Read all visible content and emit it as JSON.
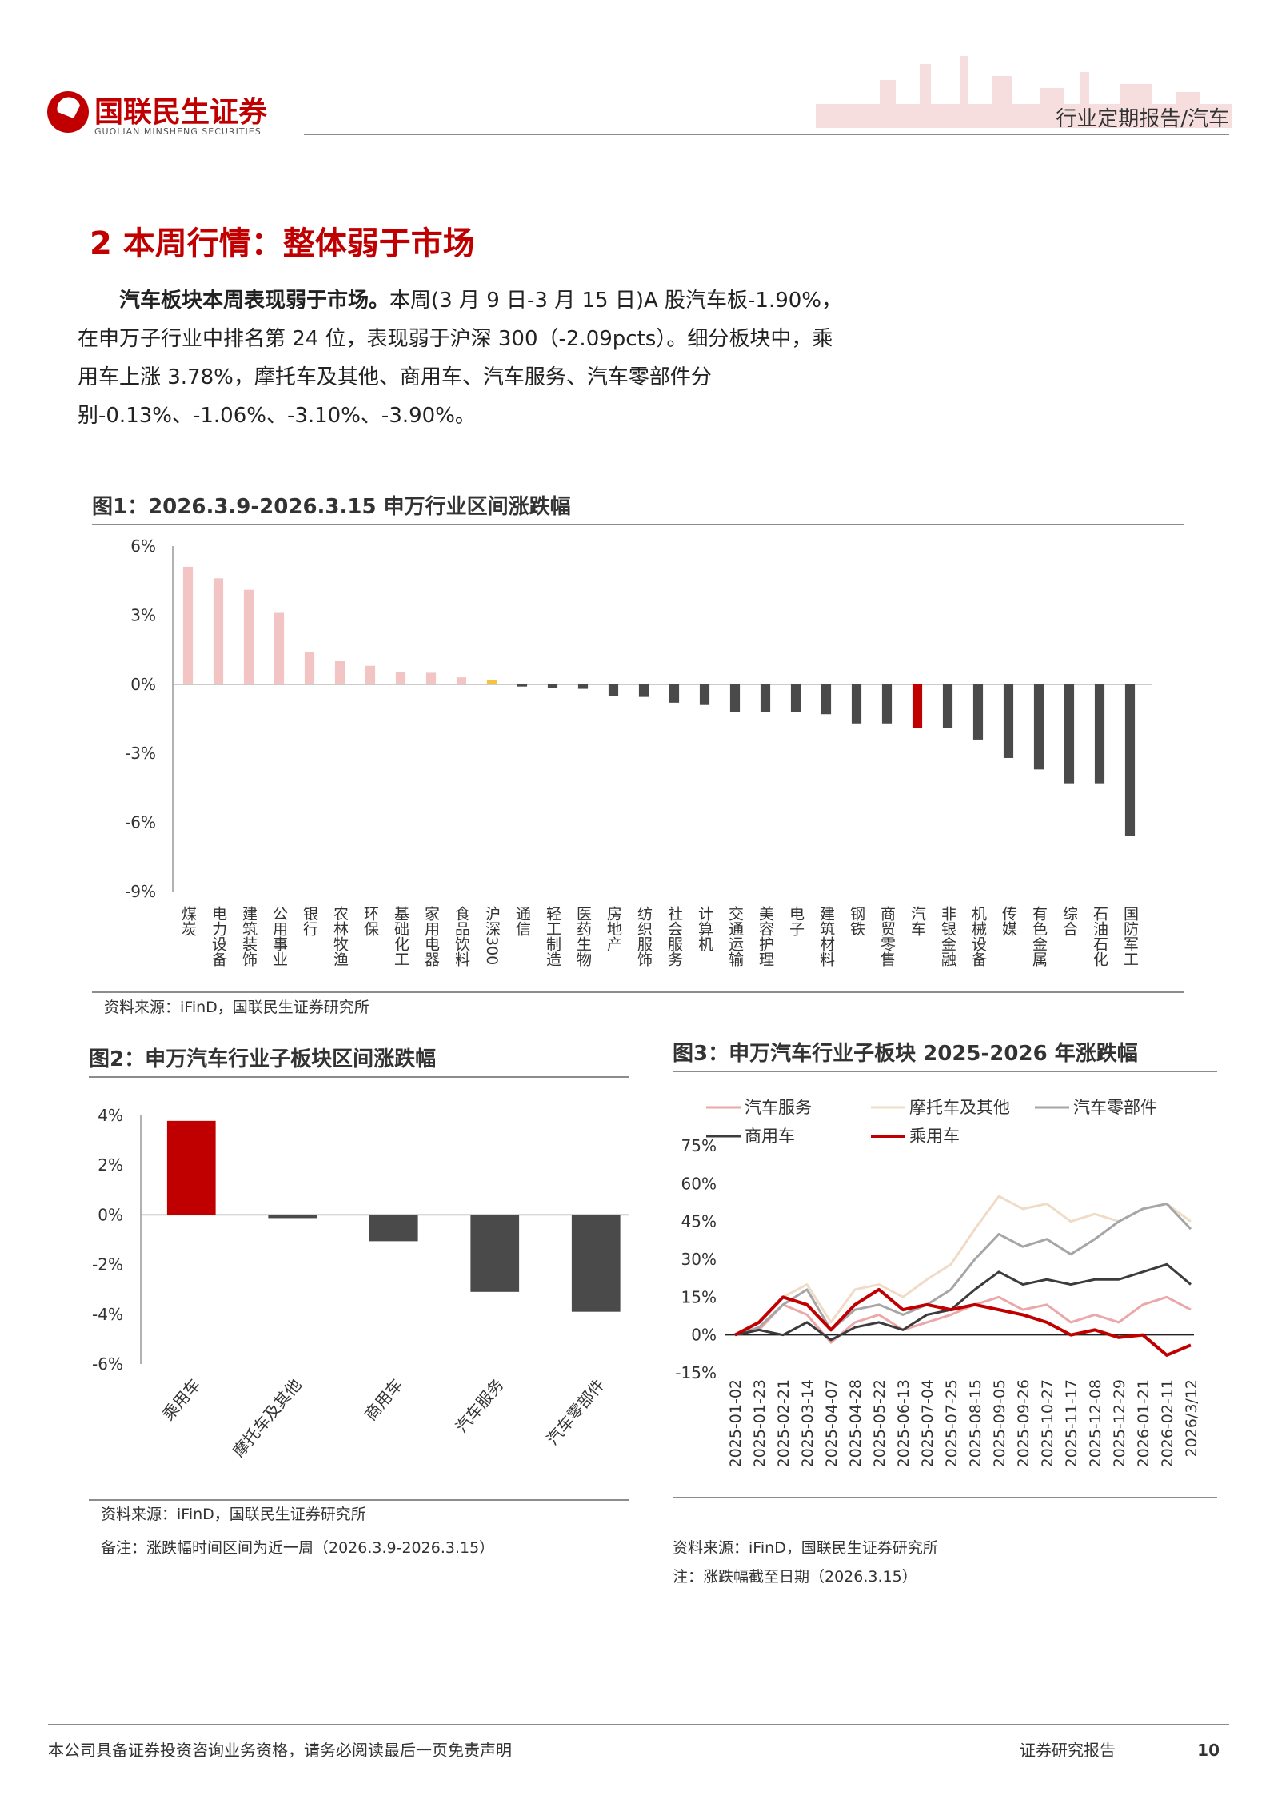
{
  "header": {
    "logo_cn": "国联民生证券",
    "logo_en": "GUOLIAN MINSHENG SECURITIES",
    "report_type": "行业定期报告/汽车"
  },
  "section": {
    "title": "2 本周行情：整体弱于市场"
  },
  "paragraph": {
    "bold": "汽车板块本周表现弱于市场。",
    "text": "本周(3 月 9 日-3 月 15 日)A 股汽车板-1.90%，在申万子行业中排名第 24 位，表现弱于沪深 300（-2.09pcts）。细分板块中，乘用车上涨 3.78%，摩托车及其他、商用车、汽车服务、汽车零部件分别-0.13%、-1.06%、-3.10%、-3.90%。"
  },
  "chart_data": [
    {
      "type": "bar",
      "title": "图1：2026.3.9-2026.3.15 申万行业区间涨跌幅",
      "categories": [
        "煤炭",
        "电力设备",
        "建筑装饰",
        "公用事业",
        "银行",
        "农林牧渔",
        "环保",
        "基础化工",
        "家用电器",
        "食品饮料",
        "沪深300",
        "通信",
        "轻工制造",
        "医药生物",
        "房地产",
        "纺织服饰",
        "社会服务",
        "计算机",
        "交通运输",
        "美容护理",
        "电子",
        "建筑材料",
        "钢铁",
        "商贸零售",
        "汽车",
        "非银金融",
        "机械设备",
        "传媒",
        "有色金属",
        "综合",
        "石油石化",
        "国防军工"
      ],
      "values": [
        5.1,
        4.6,
        4.1,
        3.1,
        1.4,
        1.0,
        0.8,
        0.55,
        0.5,
        0.3,
        0.2,
        -0.1,
        -0.15,
        -0.2,
        -0.5,
        -0.55,
        -0.8,
        -0.9,
        -1.2,
        -1.2,
        -1.2,
        -1.3,
        -1.7,
        -1.7,
        -1.9,
        -1.9,
        -2.4,
        -3.2,
        -3.7,
        -4.3,
        -4.3,
        -6.6
      ],
      "colors": [
        "#f2c4c4",
        "#f2c4c4",
        "#f2c4c4",
        "#f2c4c4",
        "#f2c4c4",
        "#f2c4c4",
        "#f2c4c4",
        "#f2c4c4",
        "#f2c4c4",
        "#f2c4c4",
        "#f5c242",
        "#4a4a4a",
        "#4a4a4a",
        "#4a4a4a",
        "#4a4a4a",
        "#4a4a4a",
        "#4a4a4a",
        "#4a4a4a",
        "#4a4a4a",
        "#4a4a4a",
        "#4a4a4a",
        "#4a4a4a",
        "#4a4a4a",
        "#4a4a4a",
        "#c00000",
        "#4a4a4a",
        "#4a4a4a",
        "#4a4a4a",
        "#4a4a4a",
        "#4a4a4a",
        "#4a4a4a",
        "#4a4a4a"
      ],
      "ylim": [
        -9,
        6
      ],
      "yticks": [
        {
          "value": 6,
          "label": "6%"
        },
        {
          "value": 3,
          "label": "3%"
        },
        {
          "value": 0,
          "label": "0%"
        },
        {
          "value": -3,
          "label": "-3%"
        },
        {
          "value": -6,
          "label": "-6%"
        },
        {
          "value": -9,
          "label": "-9%"
        }
      ],
      "source": "资料来源：iFinD，国联民生证券研究所"
    },
    {
      "type": "bar",
      "title": "图2：申万汽车行业子板块区间涨跌幅",
      "categories": [
        "乘用车",
        "摩托车及其他",
        "商用车",
        "汽车服务",
        "汽车零部件"
      ],
      "values": [
        3.78,
        -0.13,
        -1.06,
        -3.1,
        -3.9
      ],
      "colors": [
        "#c00000",
        "#4a4a4a",
        "#4a4a4a",
        "#4a4a4a",
        "#4a4a4a"
      ],
      "ylim": [
        -6,
        4
      ],
      "yticks": [
        {
          "value": 4,
          "label": "4%"
        },
        {
          "value": 2,
          "label": "2%"
        },
        {
          "value": 0,
          "label": "0%"
        },
        {
          "value": -2,
          "label": "-2%"
        },
        {
          "value": -4,
          "label": "-4%"
        },
        {
          "value": -6,
          "label": "-6%"
        }
      ],
      "source": "资料来源：iFinD，国联民生证券研究所",
      "note": "备注：涨跌幅时间区间为近一周（2026.3.9-2026.3.15）"
    },
    {
      "type": "line",
      "title": "图3：申万汽车行业子板块 2025-2026 年涨跌幅",
      "x": [
        "2025-01-02",
        "2025-01-23",
        "2025-02-21",
        "2025-03-14",
        "2025-04-07",
        "2025-04-28",
        "2025-05-22",
        "2025-06-13",
        "2025-07-04",
        "2025-07-25",
        "2025-08-15",
        "2025-09-05",
        "2025-09-26",
        "2025-10-27",
        "2025-11-17",
        "2025-12-08",
        "2025-12-29",
        "2026-01-21",
        "2026-02-11",
        "2026/3/12"
      ],
      "series": [
        {
          "name": "汽车服务",
          "color": "#eaa8a8",
          "values": [
            0,
            2,
            12,
            8,
            -3,
            5,
            8,
            2,
            5,
            8,
            12,
            15,
            10,
            12,
            5,
            8,
            5,
            12,
            15,
            10
          ]
        },
        {
          "name": "摩托车及其他",
          "color": "#f0dcc6",
          "values": [
            0,
            5,
            15,
            20,
            5,
            18,
            20,
            15,
            22,
            28,
            42,
            55,
            50,
            52,
            45,
            48,
            45,
            50,
            52,
            45
          ]
        },
        {
          "name": "汽车零部件",
          "color": "#a6a6a6",
          "values": [
            0,
            3,
            12,
            18,
            2,
            10,
            12,
            8,
            12,
            18,
            30,
            40,
            35,
            38,
            32,
            38,
            45,
            50,
            52,
            42
          ]
        },
        {
          "name": "商用车",
          "color": "#3c3c3c",
          "values": [
            0,
            2,
            0,
            5,
            -2,
            3,
            5,
            2,
            8,
            10,
            18,
            25,
            20,
            22,
            20,
            22,
            22,
            25,
            28,
            20
          ]
        },
        {
          "name": "乘用车",
          "color": "#c00000",
          "values": [
            0,
            5,
            15,
            12,
            2,
            12,
            18,
            10,
            12,
            10,
            12,
            10,
            8,
            5,
            0,
            2,
            -1,
            0,
            -8,
            -4
          ]
        }
      ],
      "ylim": [
        -15,
        75
      ],
      "yticks": [
        {
          "value": 75,
          "label": "75%"
        },
        {
          "value": 60,
          "label": "60%"
        },
        {
          "value": 45,
          "label": "45%"
        },
        {
          "value": 30,
          "label": "30%"
        },
        {
          "value": 15,
          "label": "15%"
        },
        {
          "value": 0,
          "label": "0%"
        },
        {
          "value": -15,
          "label": "-15%"
        }
      ],
      "source": "资料来源：iFinD，国联民生证券研究所",
      "note": "注：涨跌幅截至日期（2026.3.15）"
    }
  ],
  "footer": {
    "disclaimer": "本公司具备证券投资咨询业务资格，请务必阅读最后一页免责声明",
    "label": "证券研究报告",
    "page": "10"
  }
}
